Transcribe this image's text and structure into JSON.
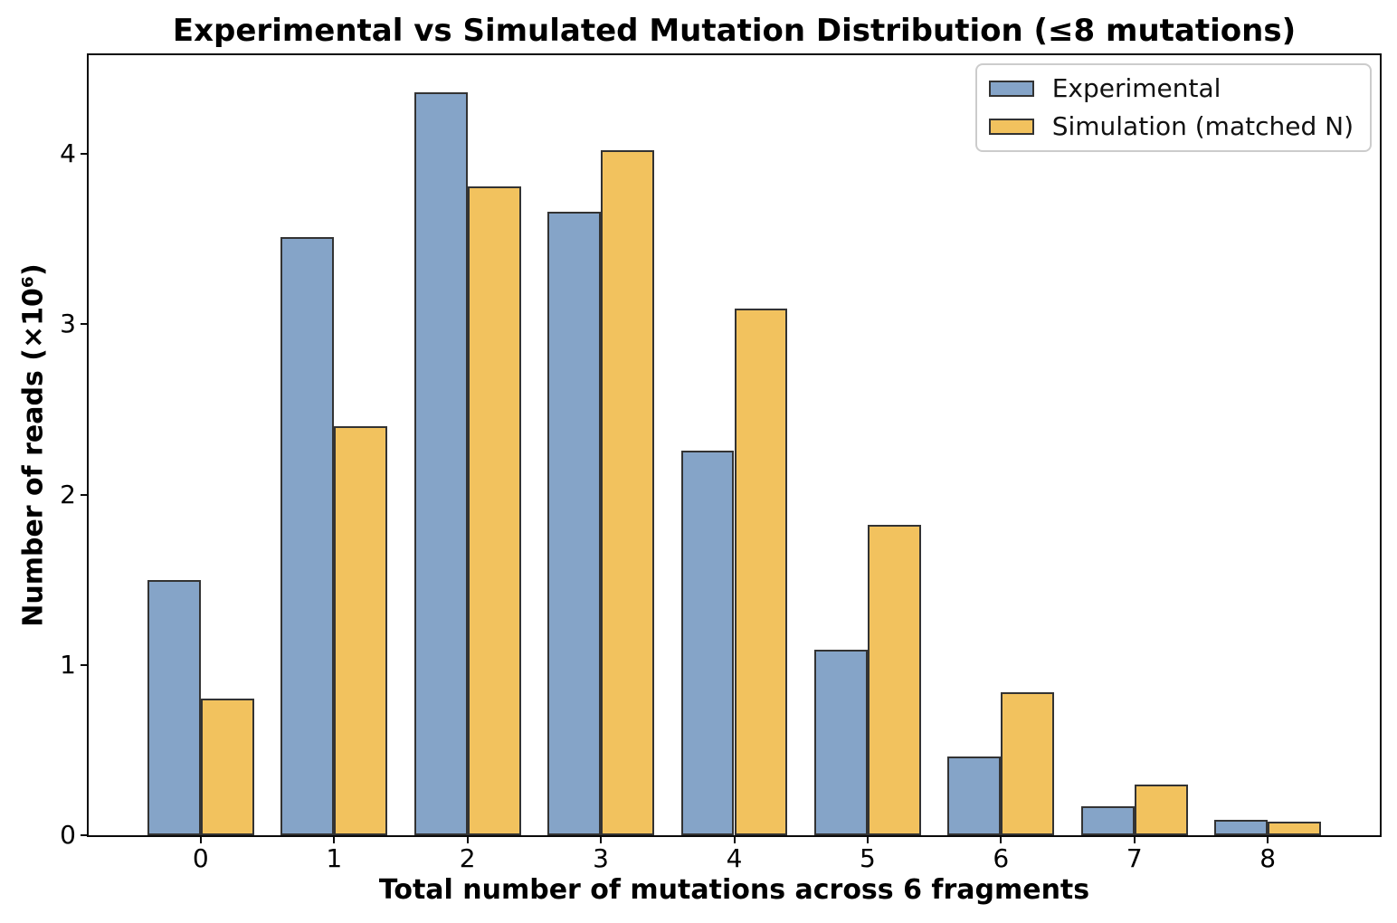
{
  "chart_data": {
    "type": "bar",
    "title": "Experimental vs Simulated Mutation Distribution (≤8 mutations)",
    "xlabel": "Total number of mutations across 6 fragments",
    "ylabel": "Number of reads (×10⁶)",
    "categories": [
      "0",
      "1",
      "2",
      "3",
      "4",
      "5",
      "6",
      "7",
      "8"
    ],
    "series": [
      {
        "key": "experimental",
        "name": "Experimental",
        "color": "#85A4C8",
        "values": [
          1.5,
          3.51,
          4.36,
          3.66,
          2.26,
          1.09,
          0.46,
          0.17,
          0.09
        ]
      },
      {
        "key": "simulation",
        "name": "Simulation (matched N)",
        "color": "#F2C25E",
        "values": [
          0.8,
          2.4,
          3.81,
          4.02,
          3.09,
          1.82,
          0.84,
          0.3,
          0.08
        ]
      }
    ],
    "units": "millions of reads",
    "ylim": [
      0,
      4.58
    ],
    "yticks": [
      0,
      1,
      2,
      3,
      4
    ],
    "grid": false,
    "legend_position": "upper right",
    "bar_edge_color": "#333333"
  }
}
